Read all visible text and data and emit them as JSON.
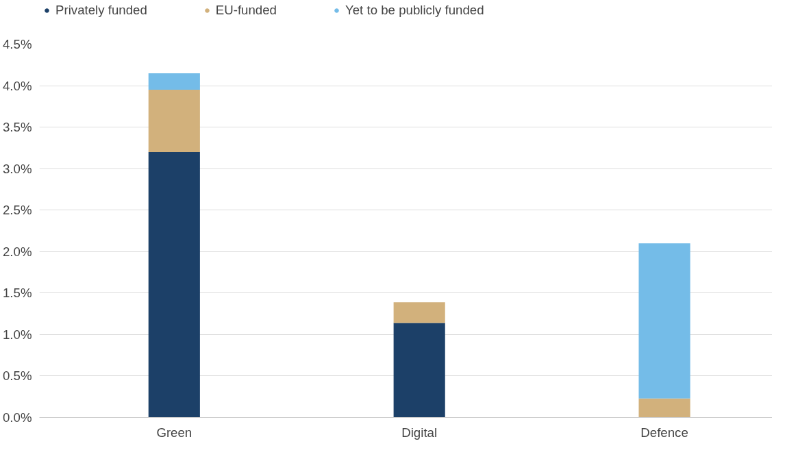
{
  "chart_data": {
    "type": "bar",
    "stacked": true,
    "categories": [
      "Green",
      "Digital",
      "Defence"
    ],
    "series": [
      {
        "name": "Privately funded",
        "color": "#1c4068",
        "values": [
          3.2,
          1.14,
          0
        ]
      },
      {
        "name": "EU-funded",
        "color": "#d2b17c",
        "values": [
          0.75,
          0.25,
          0.23
        ]
      },
      {
        "name": "Yet to be publicly funded",
        "color": "#74bce8",
        "values": [
          0.2,
          0,
          1.87
        ]
      }
    ],
    "ylim": [
      0,
      4.5
    ],
    "yticks": [
      {
        "value": 0,
        "label": "0.0%"
      },
      {
        "value": 0.5,
        "label": "0.5%"
      },
      {
        "value": 1,
        "label": "1.0%"
      },
      {
        "value": 1.5,
        "label": "1.5%"
      },
      {
        "value": 2,
        "label": "2.0%"
      },
      {
        "value": 2.5,
        "label": "2.5%"
      },
      {
        "value": 3,
        "label": "3.0%"
      },
      {
        "value": 3.5,
        "label": "3.5%"
      },
      {
        "value": 4,
        "label": "4.0%"
      },
      {
        "value": 4.5,
        "label": "4.5%"
      }
    ],
    "grid": "y",
    "legend": "top left"
  }
}
